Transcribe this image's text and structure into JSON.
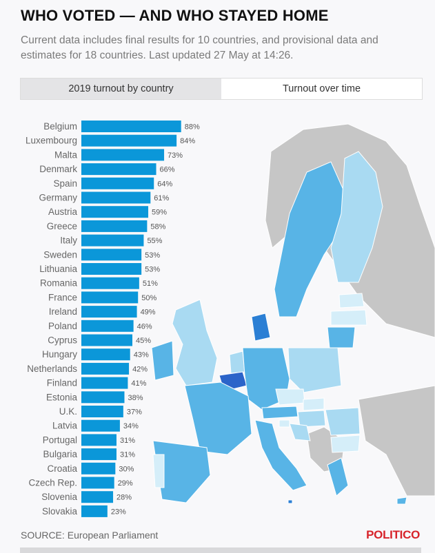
{
  "header": {
    "title": "WHO VOTED — AND WHO STAYED HOME",
    "subtitle": "Current data includes final results for 10 countries, and provisional data and estimates for 18 countries. Last updated 27 May at 14:26."
  },
  "tabs": [
    {
      "label": "2019 turnout by country",
      "active": true
    },
    {
      "label": "Turnout over time",
      "active": false
    }
  ],
  "footer": {
    "source_label": "SOURCE:",
    "source_value": "European Parliament",
    "logo": "POLITICO"
  },
  "colors": {
    "bar": "#0b97d9",
    "map_high": "#2b7fd4",
    "map_mid": "#58b4e6",
    "map_low": "#a9daf2",
    "map_lowest": "#d5eef9",
    "non_eu": "#c6c6c6",
    "selected": "#2b64c9"
  },
  "chart_data": {
    "type": "bar",
    "orientation": "horizontal",
    "title": "",
    "xlabel": "",
    "ylabel": "",
    "value_suffix": "%",
    "xlim": [
      0,
      100
    ],
    "grid": false,
    "legend": "none",
    "categories": [
      "Belgium",
      "Luxembourg",
      "Malta",
      "Denmark",
      "Spain",
      "Germany",
      "Austria",
      "Greece",
      "Italy",
      "Sweden",
      "Lithuania",
      "Romania",
      "France",
      "Ireland",
      "Poland",
      "Cyprus",
      "Hungary",
      "Netherlands",
      "Finland",
      "Estonia",
      "U.K.",
      "Latvia",
      "Portugal",
      "Bulgaria",
      "Croatia",
      "Czech Rep.",
      "Slovenia",
      "Slovakia"
    ],
    "values": [
      88,
      84,
      73,
      66,
      64,
      61,
      59,
      58,
      55,
      53,
      53,
      51,
      50,
      49,
      46,
      45,
      43,
      42,
      41,
      38,
      37,
      34,
      31,
      31,
      30,
      29,
      28,
      23
    ]
  }
}
